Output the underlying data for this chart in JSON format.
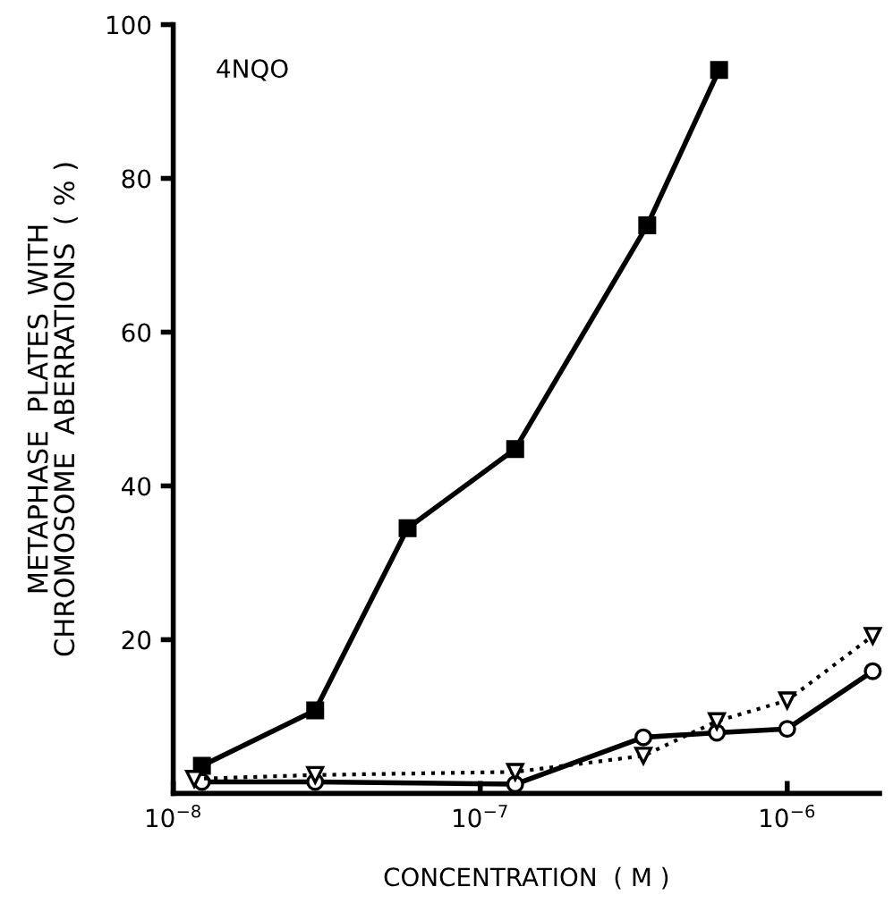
{
  "chart_data": {
    "type": "line",
    "xlabel": "CONCENTRATION  ( M )",
    "ylabel": "METAPHASE  PLATES  WITH\nCHROMOSOME  ABERRATIONS  ( % )",
    "annotations": [
      "4NQO"
    ],
    "log": "x",
    "xlim": [
      1e-08,
      2e-06
    ],
    "ylim": [
      0,
      100
    ],
    "xticks": [
      {
        "value": 1e-08,
        "label": "10$^{−8}$"
      },
      {
        "value": 1e-07,
        "label": "10$^{−7}$"
      },
      {
        "value": 1e-06,
        "label": "10$^{−6}$"
      }
    ],
    "yticks": [
      20,
      40,
      60,
      80,
      100
    ],
    "grid": false,
    "legend": false,
    "series": [
      {
        "color": "#000000",
        "marker": "square",
        "line_style": "solid",
        "x": [
          1.24e-08,
          2.9e-08,
          5.8e-08,
          1.3e-07,
          3.5e-07,
          6e-07
        ],
        "values": [
          3.6,
          10.8,
          34.5,
          44.8,
          73.9,
          94.1
        ]
      },
      {
        "color": "#000000",
        "marker": "circle",
        "line_style": "solid",
        "x": [
          1.24e-08,
          2.9e-08,
          1.3e-07,
          3.4e-07,
          5.9e-07,
          1e-06,
          1.9e-06
        ],
        "values": [
          1.5,
          1.5,
          1.2,
          7.3,
          7.9,
          8.4,
          15.9
        ]
      },
      {
        "color": "#000000",
        "marker": "triangle",
        "line_style": "dotted",
        "x": [
          1.17e-08,
          2.9e-08,
          1.3e-07,
          3.4e-07,
          5.9e-07,
          1e-06,
          1.9e-06
        ],
        "values": [
          1.9,
          2.4,
          2.8,
          4.9,
          9.4,
          12.1,
          20.5
        ]
      }
    ]
  }
}
